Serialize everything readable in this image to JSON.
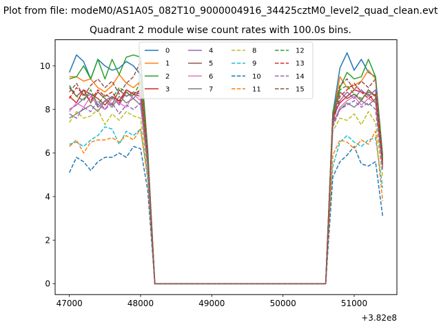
{
  "suptitle": "Plot from file: modeM0/AS1A05_082T10_9000004916_34425cztM0_level2_quad_clean.evt",
  "chart_data": {
    "type": "line",
    "title": "Quadrant 2 module wise count rates with 100.0s bins.",
    "xlabel": "",
    "ylabel": "",
    "x_offset_label": "+3.82e8",
    "x_offset": 382000000,
    "xlim": [
      46800,
      51600
    ],
    "ylim": [
      -0.5,
      11.2
    ],
    "xticks": [
      47000,
      48000,
      49000,
      50000,
      51000
    ],
    "yticks": [
      0,
      2,
      4,
      6,
      8,
      10
    ],
    "legend_position": "top-center",
    "legend_columns": 4,
    "x": [
      47000,
      47100,
      47200,
      47300,
      47400,
      47500,
      47600,
      47700,
      47800,
      47900,
      48000,
      48100,
      48200,
      48300,
      48400,
      48500,
      48600,
      48700,
      48800,
      48900,
      49000,
      49100,
      49200,
      49300,
      49400,
      49500,
      49600,
      49700,
      49800,
      49900,
      50000,
      50100,
      50200,
      50300,
      50400,
      50500,
      50600,
      50700,
      50800,
      50900,
      51000,
      51100,
      51200,
      51300,
      51400
    ],
    "series": [
      {
        "name": "0",
        "color": "#1f77b4",
        "dash": "solid",
        "values": [
          9.7,
          10.5,
          10.2,
          9.4,
          10.3,
          10.0,
          9.8,
          9.9,
          10.2,
          10.0,
          9.6,
          6.0,
          0,
          0,
          0,
          0,
          0,
          0,
          0,
          0,
          0,
          0,
          0,
          0,
          0,
          0,
          0,
          0,
          0,
          0,
          0,
          0,
          0,
          0,
          0,
          0,
          0,
          7.8,
          9.9,
          10.6,
          9.8,
          10.3,
          9.7,
          9.5,
          5.8
        ]
      },
      {
        "name": "1",
        "color": "#ff7f0e",
        "dash": "solid",
        "values": [
          9.5,
          9.5,
          9.3,
          9.4,
          9.0,
          8.8,
          9.1,
          9.6,
          9.2,
          9.0,
          9.3,
          5.9,
          0,
          0,
          0,
          0,
          0,
          0,
          0,
          0,
          0,
          0,
          0,
          0,
          0,
          0,
          0,
          0,
          0,
          0,
          0,
          0,
          0,
          0,
          0,
          0,
          0,
          7.6,
          9.5,
          9.0,
          9.1,
          9.3,
          9.8,
          9.4,
          5.5
        ]
      },
      {
        "name": "2",
        "color": "#2ca02c",
        "dash": "solid",
        "values": [
          9.4,
          9.5,
          10.0,
          9.4,
          10.3,
          9.4,
          10.3,
          9.6,
          10.4,
          10.5,
          10.4,
          6.2,
          0,
          0,
          0,
          0,
          0,
          0,
          0,
          0,
          0,
          0,
          0,
          0,
          0,
          0,
          0,
          0,
          0,
          0,
          0,
          0,
          0,
          0,
          0,
          0,
          0,
          7.9,
          9.0,
          9.7,
          9.4,
          9.5,
          10.3,
          9.5,
          5.9
        ]
      },
      {
        "name": "3",
        "color": "#d62728",
        "dash": "solid",
        "values": [
          8.6,
          8.3,
          8.9,
          8.7,
          8.5,
          8.2,
          8.6,
          8.4,
          8.9,
          8.7,
          8.6,
          5.8,
          0,
          0,
          0,
          0,
          0,
          0,
          0,
          0,
          0,
          0,
          0,
          0,
          0,
          0,
          0,
          0,
          0,
          0,
          0,
          0,
          0,
          0,
          0,
          0,
          0,
          7.7,
          8.3,
          8.6,
          8.9,
          8.8,
          8.7,
          8.3,
          5.6
        ]
      },
      {
        "name": "4",
        "color": "#9467bd",
        "dash": "solid",
        "values": [
          8.0,
          8.2,
          8.5,
          8.7,
          8.1,
          8.4,
          8.6,
          8.2,
          8.8,
          8.5,
          8.9,
          5.7,
          0,
          0,
          0,
          0,
          0,
          0,
          0,
          0,
          0,
          0,
          0,
          0,
          0,
          0,
          0,
          0,
          0,
          0,
          0,
          0,
          0,
          0,
          0,
          0,
          0,
          7.5,
          8.4,
          8.8,
          8.5,
          8.9,
          8.6,
          8.9,
          5.4
        ]
      },
      {
        "name": "5",
        "color": "#8c564b",
        "dash": "solid",
        "values": [
          9.0,
          8.6,
          8.9,
          8.3,
          8.8,
          8.5,
          8.2,
          8.9,
          8.6,
          8.8,
          8.7,
          5.9,
          0,
          0,
          0,
          0,
          0,
          0,
          0,
          0,
          0,
          0,
          0,
          0,
          0,
          0,
          0,
          0,
          0,
          0,
          0,
          0,
          0,
          0,
          0,
          0,
          0,
          7.6,
          8.8,
          8.5,
          8.7,
          8.4,
          8.9,
          8.6,
          5.7
        ]
      },
      {
        "name": "6",
        "color": "#e377c2",
        "dash": "solid",
        "values": [
          7.9,
          8.3,
          8.1,
          8.6,
          8.2,
          8.0,
          8.5,
          8.3,
          8.1,
          8.7,
          8.4,
          5.6,
          0,
          0,
          0,
          0,
          0,
          0,
          0,
          0,
          0,
          0,
          0,
          0,
          0,
          0,
          0,
          0,
          0,
          0,
          0,
          0,
          0,
          0,
          0,
          0,
          0,
          7.3,
          8.1,
          8.4,
          8.6,
          8.2,
          8.5,
          8.3,
          5.3
        ]
      },
      {
        "name": "7",
        "color": "#7f7f7f",
        "dash": "solid",
        "values": [
          7.6,
          7.8,
          8.0,
          8.2,
          7.9,
          8.4,
          8.1,
          8.6,
          8.3,
          8.5,
          8.2,
          5.5,
          0,
          0,
          0,
          0,
          0,
          0,
          0,
          0,
          0,
          0,
          0,
          0,
          0,
          0,
          0,
          0,
          0,
          0,
          0,
          0,
          0,
          0,
          0,
          0,
          0,
          7.4,
          8.0,
          8.3,
          8.1,
          8.4,
          8.2,
          8.5,
          5.4
        ]
      },
      {
        "name": "8",
        "color": "#bcbd22",
        "dash": "dashed",
        "values": [
          7.4,
          7.9,
          7.6,
          7.7,
          8.0,
          7.3,
          7.8,
          7.5,
          7.9,
          7.7,
          7.6,
          5.2,
          0,
          0,
          0,
          0,
          0,
          0,
          0,
          0,
          0,
          0,
          0,
          0,
          0,
          0,
          0,
          0,
          0,
          0,
          0,
          0,
          0,
          0,
          0,
          0,
          0,
          7.0,
          7.6,
          7.5,
          7.8,
          7.3,
          7.9,
          7.4,
          4.9
        ]
      },
      {
        "name": "9",
        "color": "#17becf",
        "dash": "dashed",
        "values": [
          6.4,
          6.5,
          6.3,
          6.6,
          6.8,
          7.2,
          7.1,
          6.4,
          7.0,
          6.8,
          7.1,
          5.0,
          0,
          0,
          0,
          0,
          0,
          0,
          0,
          0,
          0,
          0,
          0,
          0,
          0,
          0,
          0,
          0,
          0,
          0,
          0,
          0,
          0,
          0,
          0,
          0,
          0,
          5.4,
          6.5,
          6.8,
          6.5,
          6.3,
          6.6,
          6.7,
          4.4
        ]
      },
      {
        "name": "10",
        "color": "#1f77b4",
        "dash": "dashed",
        "values": [
          5.1,
          5.8,
          5.6,
          5.2,
          5.6,
          5.8,
          5.8,
          6.0,
          5.8,
          6.3,
          6.2,
          4.3,
          0,
          0,
          0,
          0,
          0,
          0,
          0,
          0,
          0,
          0,
          0,
          0,
          0,
          0,
          0,
          0,
          0,
          0,
          0,
          0,
          0,
          0,
          0,
          0,
          0,
          4.9,
          5.6,
          5.9,
          6.3,
          5.5,
          5.4,
          5.6,
          3.1
        ]
      },
      {
        "name": "11",
        "color": "#ff7f0e",
        "dash": "dashed",
        "values": [
          6.3,
          6.6,
          6.0,
          6.5,
          6.6,
          6.6,
          6.7,
          6.5,
          6.8,
          6.6,
          7.1,
          4.8,
          0,
          0,
          0,
          0,
          0,
          0,
          0,
          0,
          0,
          0,
          0,
          0,
          0,
          0,
          0,
          0,
          0,
          0,
          0,
          0,
          0,
          0,
          0,
          0,
          0,
          5.9,
          6.6,
          6.5,
          6.2,
          6.6,
          6.4,
          7.0,
          3.8
        ]
      },
      {
        "name": "12",
        "color": "#2ca02c",
        "dash": "dashed",
        "values": [
          9.1,
          8.6,
          8.4,
          8.9,
          8.2,
          8.7,
          8.5,
          9.0,
          8.8,
          8.6,
          9.3,
          6.0,
          0,
          0,
          0,
          0,
          0,
          0,
          0,
          0,
          0,
          0,
          0,
          0,
          0,
          0,
          0,
          0,
          0,
          0,
          0,
          0,
          0,
          0,
          0,
          0,
          0,
          7.7,
          8.9,
          9.1,
          8.7,
          8.5,
          8.8,
          8.6,
          5.6
        ]
      },
      {
        "name": "13",
        "color": "#d62728",
        "dash": "dashed",
        "values": [
          8.5,
          9.0,
          8.7,
          8.4,
          8.9,
          8.6,
          8.8,
          8.3,
          8.9,
          8.7,
          8.9,
          5.8,
          0,
          0,
          0,
          0,
          0,
          0,
          0,
          0,
          0,
          0,
          0,
          0,
          0,
          0,
          0,
          0,
          0,
          0,
          0,
          0,
          0,
          0,
          0,
          0,
          0,
          7.4,
          8.6,
          8.9,
          9.2,
          8.8,
          8.5,
          8.7,
          5.5
        ]
      },
      {
        "name": "14",
        "color": "#9467bd",
        "dash": "dashed",
        "values": [
          7.8,
          7.6,
          8.1,
          7.9,
          8.4,
          8.0,
          8.3,
          7.8,
          8.2,
          8.0,
          8.3,
          5.4,
          0,
          0,
          0,
          0,
          0,
          0,
          0,
          0,
          0,
          0,
          0,
          0,
          0,
          0,
          0,
          0,
          0,
          0,
          0,
          0,
          0,
          0,
          0,
          0,
          0,
          7.2,
          8.0,
          8.2,
          8.4,
          8.1,
          8.3,
          8.0,
          5.2
        ]
      },
      {
        "name": "15",
        "color": "#8c564b",
        "dash": "dashed",
        "values": [
          8.8,
          9.2,
          8.6,
          9.1,
          9.4,
          9.0,
          9.3,
          8.7,
          9.2,
          9.5,
          10.2,
          6.1,
          0,
          0,
          0,
          0,
          0,
          0,
          0,
          0,
          0,
          0,
          0,
          0,
          0,
          0,
          0,
          0,
          0,
          0,
          0,
          0,
          0,
          0,
          0,
          0,
          0,
          7.8,
          9.1,
          9.4,
          8.9,
          9.3,
          9.0,
          9.4,
          5.8
        ]
      }
    ]
  }
}
